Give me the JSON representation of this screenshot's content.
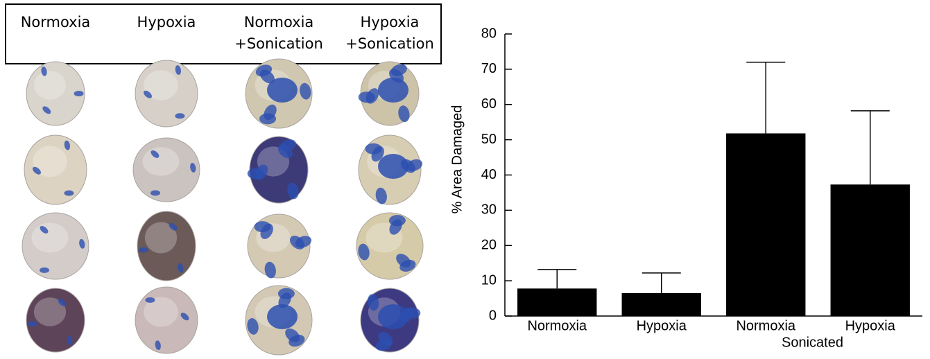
{
  "panel": {
    "headers": [
      [
        "Normoxia"
      ],
      [
        "Hypoxia"
      ],
      [
        "Normoxia",
        "+Sonication"
      ],
      [
        "Hypoxia",
        "+Sonication"
      ]
    ]
  },
  "chart_data": {
    "type": "bar",
    "categories": [
      "Normoxia",
      "Hypoxia",
      "Normoxia",
      "Hypoxia"
    ],
    "group_label": "Sonicated",
    "y_label": "% Area Damaged",
    "values": [
      7.8,
      6.5,
      51.8,
      37.3
    ],
    "errors": [
      5.4,
      5.7,
      20.2,
      20.9
    ],
    "color": "#000000",
    "ylim": [
      0,
      80
    ],
    "yticks": [
      0,
      10,
      20,
      30,
      40,
      50,
      60,
      70,
      80
    ],
    "grid": false
  }
}
